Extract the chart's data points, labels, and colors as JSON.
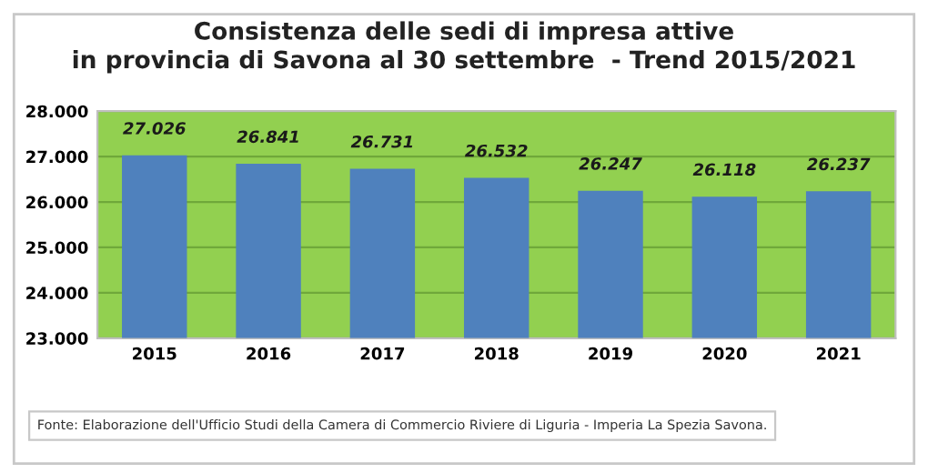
{
  "chart_data": {
    "type": "bar",
    "title": "Consistenza delle sedi di impresa attive\nin provincia di Savona al 30 settembre  - Trend 2015/2021",
    "categories": [
      "2015",
      "2016",
      "2017",
      "2018",
      "2019",
      "2020",
      "2021"
    ],
    "values": [
      27026,
      26841,
      26731,
      26532,
      26247,
      26118,
      26237
    ],
    "value_labels": [
      "27.026",
      "26.841",
      "26.731",
      "26.532",
      "26.247",
      "26.118",
      "26.237"
    ],
    "color": "#4f81bd",
    "ylim": [
      23000,
      28000
    ],
    "yticks": [
      {
        "value": 23000,
        "label": "23.000"
      },
      {
        "value": 24000,
        "label": "24.000"
      },
      {
        "value": 25000,
        "label": "25.000"
      },
      {
        "value": 26000,
        "label": "26.000"
      },
      {
        "value": 27000,
        "label": "27.000"
      },
      {
        "value": 28000,
        "label": "28.000"
      }
    ],
    "grid": "y",
    "annotations": [
      "Fonte: Elaborazione dell'Ufficio Studi della Camera di Commercio Riviere di Liguria - Imperia La Spezia Savona."
    ]
  }
}
